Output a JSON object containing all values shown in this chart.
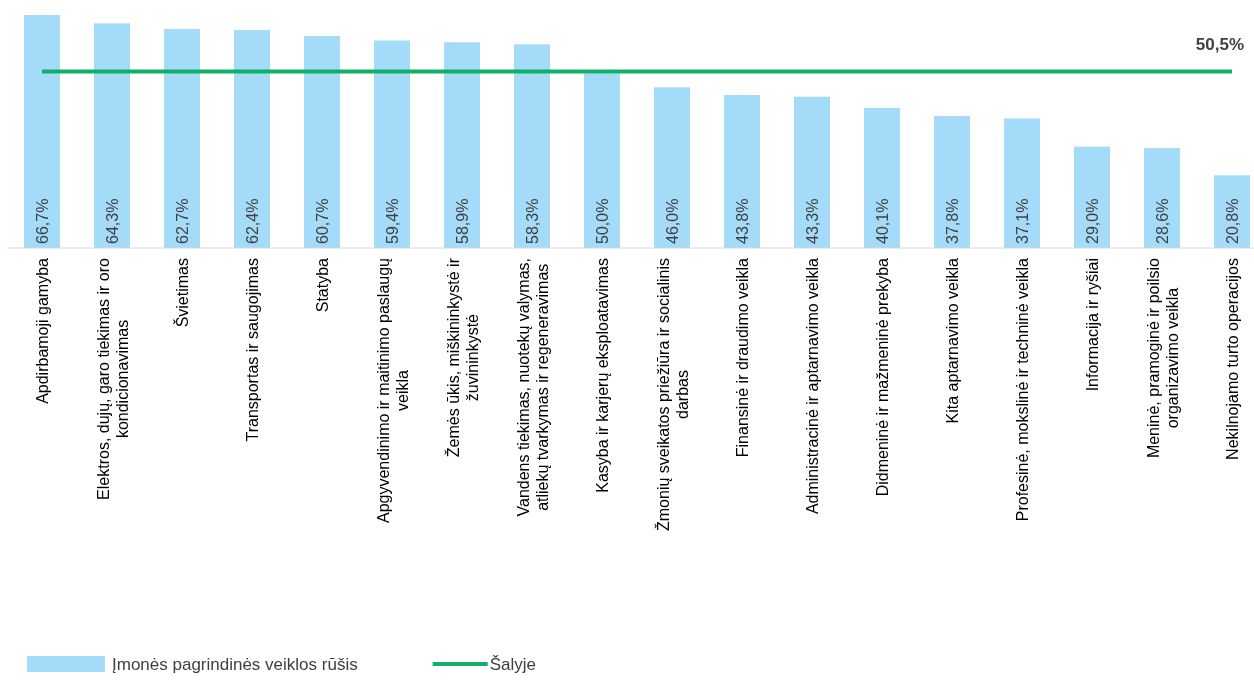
{
  "chart_data": {
    "type": "bar",
    "legend": "bottom left",
    "categories": [
      "Apdirbamoji gamyba",
      "Elektros, dujų, garo tiekimas ir oro kondicionavimas",
      "Švietimas",
      "Transportas ir saugojimas",
      "Statyba",
      "Apgyvendinimo ir maitinimo paslaugų veikla",
      "Žemės ūkis, miškininkystė ir žuvininkystė",
      "Vandens tiekimas, nuotekų valymas, atliekų tvarkymas ir regeneravimas",
      "Kasyba ir karjerų eksploatavimas",
      "Žmonių sveikatos priežiūra ir socialinis darbas",
      "Finansinė ir draudimo veikla",
      "Administracinė ir aptarnavimo veikla",
      "Didmeninė ir mažmeninė prekyba",
      "Kita aptarnavimo veikla",
      "Profesinė, mokslinė ir techninė veikla",
      "Informacija ir ryšiai",
      "Meninė, pramoginė ir poilsio organizavimo veikla",
      "Nekilnojamo turto operacijos"
    ],
    "series": [
      {
        "name": "Įmonės pagrindinės veiklos rūšis",
        "color": "#a3dbf9",
        "values": [
          66.7,
          64.3,
          62.7,
          62.4,
          60.7,
          59.4,
          58.9,
          58.3,
          50.0,
          46.0,
          43.8,
          43.3,
          40.1,
          37.8,
          37.1,
          29.0,
          28.6,
          20.8
        ],
        "value_labels": [
          "66,7%",
          "64,3%",
          "62,7%",
          "62,4%",
          "60,7%",
          "59,4%",
          "58,9%",
          "58,3%",
          "50,0%",
          "46,0%",
          "43,8%",
          "43,3%",
          "40,1%",
          "37,8%",
          "37,1%",
          "29,0%",
          "28,6%",
          "20,8%"
        ]
      },
      {
        "type": "line",
        "name": "Šalyje",
        "color": "#10b06a",
        "values": [
          50.5,
          50.5,
          50.5,
          50.5,
          50.5,
          50.5,
          50.5,
          50.5,
          50.5,
          50.5,
          50.5,
          50.5,
          50.5,
          50.5,
          50.5,
          50.5,
          50.5,
          50.5
        ],
        "value_labels": [
          null,
          null,
          null,
          null,
          null,
          null,
          null,
          null,
          null,
          null,
          null,
          null,
          null,
          null,
          null,
          null,
          null,
          "50,5%"
        ]
      }
    ]
  }
}
